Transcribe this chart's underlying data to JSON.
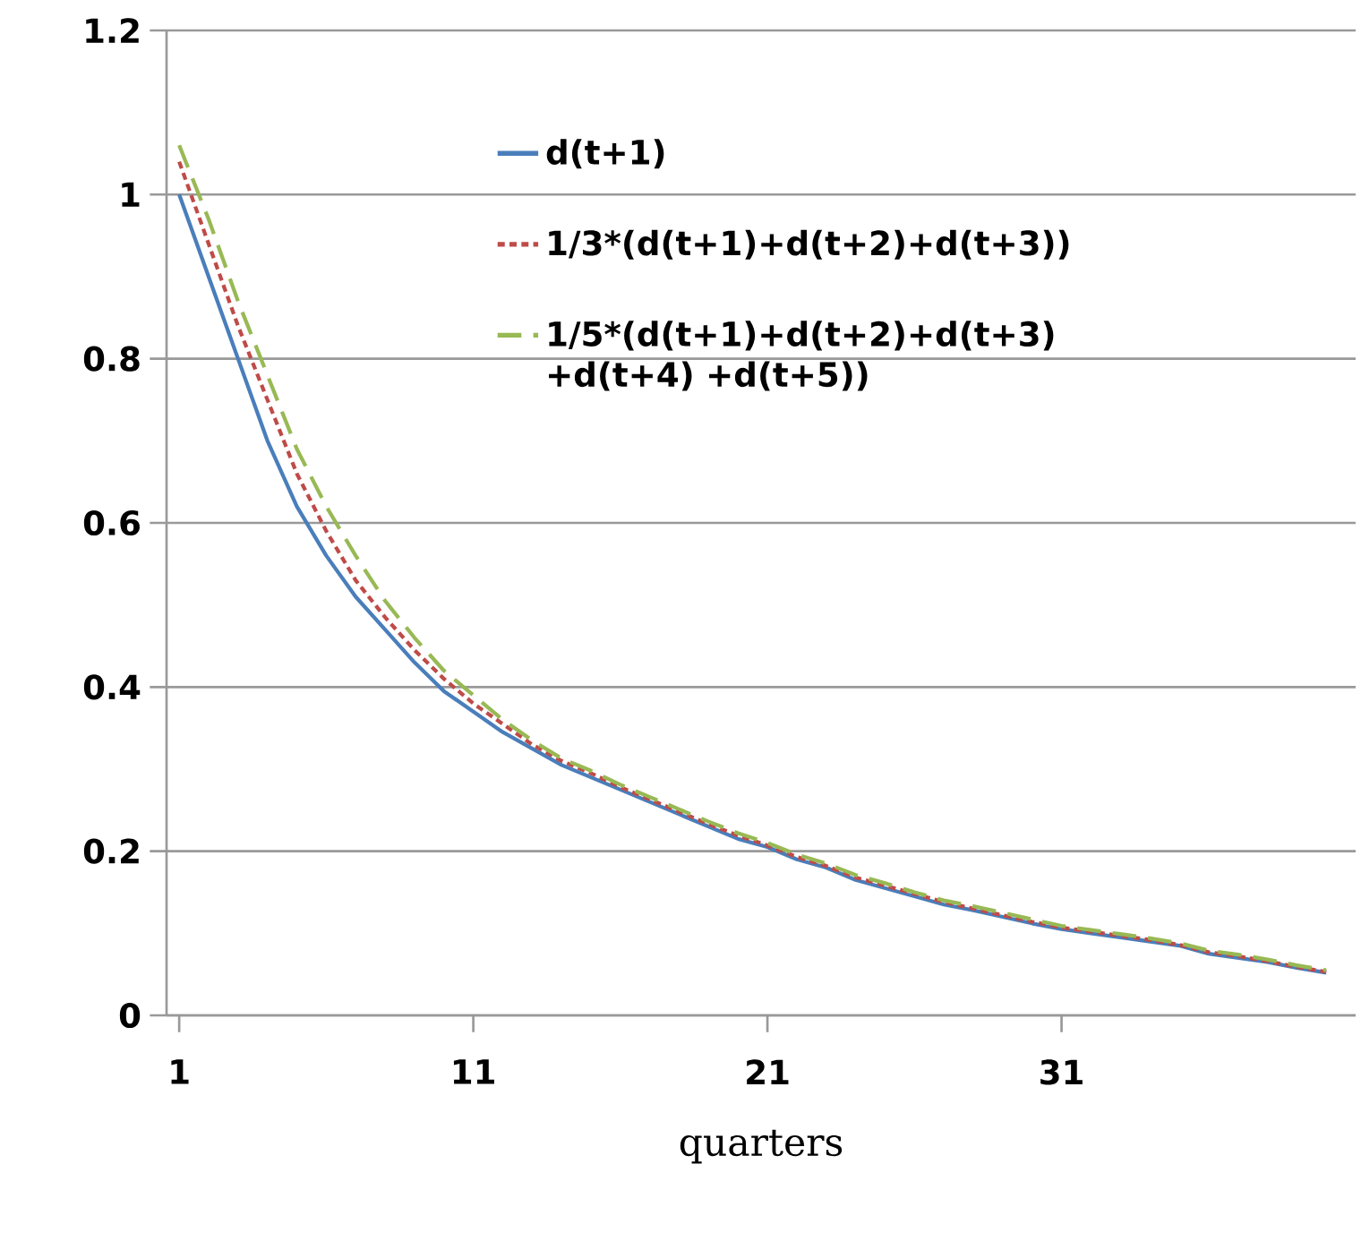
{
  "chart_data": {
    "type": "line",
    "xlabel": "quarters",
    "x": [
      1,
      2,
      3,
      4,
      5,
      6,
      7,
      8,
      9,
      10,
      11,
      12,
      13,
      14,
      15,
      16,
      17,
      18,
      19,
      20,
      21,
      22,
      23,
      24,
      25,
      26,
      27,
      28,
      29,
      30,
      31,
      32,
      33,
      34,
      35,
      36,
      37,
      38,
      39,
      40
    ],
    "series": [
      {
        "name": "d(t+1)",
        "color": "#4a7ebb",
        "line_style": "solid",
        "values": [
          1.0,
          0.9,
          0.8,
          0.7,
          0.62,
          0.56,
          0.51,
          0.47,
          0.43,
          0.395,
          0.37,
          0.345,
          0.325,
          0.305,
          0.29,
          0.275,
          0.26,
          0.245,
          0.23,
          0.215,
          0.205,
          0.19,
          0.18,
          0.165,
          0.155,
          0.145,
          0.135,
          0.128,
          0.12,
          0.112,
          0.105,
          0.1,
          0.095,
          0.09,
          0.085,
          0.075,
          0.07,
          0.065,
          0.058,
          0.052
        ]
      },
      {
        "name": "1/3*(d(t+1)+d(t+2)+d(t+3))",
        "color": "#be4b48",
        "line_style": "dotted",
        "values": [
          1.04,
          0.94,
          0.84,
          0.75,
          0.66,
          0.59,
          0.53,
          0.485,
          0.445,
          0.41,
          0.38,
          0.355,
          0.33,
          0.31,
          0.295,
          0.278,
          0.263,
          0.248,
          0.233,
          0.219,
          0.207,
          0.193,
          0.182,
          0.168,
          0.158,
          0.148,
          0.138,
          0.13,
          0.122,
          0.114,
          0.107,
          0.102,
          0.097,
          0.092,
          0.086,
          0.077,
          0.072,
          0.066,
          0.059,
          0.053
        ]
      },
      {
        "name": "1/5*(d(t+1)+d(t+2)+d(t+3) +d(t+4) +d(t+5))",
        "color": "#98b954",
        "line_style": "dashed",
        "values": [
          1.06,
          0.97,
          0.87,
          0.78,
          0.69,
          0.62,
          0.56,
          0.505,
          0.46,
          0.42,
          0.39,
          0.36,
          0.335,
          0.313,
          0.298,
          0.281,
          0.266,
          0.251,
          0.236,
          0.222,
          0.21,
          0.196,
          0.185,
          0.171,
          0.161,
          0.15,
          0.14,
          0.133,
          0.125,
          0.117,
          0.109,
          0.104,
          0.099,
          0.094,
          0.088,
          0.079,
          0.074,
          0.068,
          0.061,
          0.055
        ]
      }
    ],
    "xlim": [
      0.57,
      41
    ],
    "xticks": [
      1,
      11,
      21,
      31
    ],
    "ylim": [
      0,
      1.2
    ],
    "yticks": [
      0,
      0.2,
      0.4,
      0.6,
      0.8,
      1,
      1.2
    ],
    "grid": "y",
    "legend": "top right",
    "marker": "none"
  }
}
